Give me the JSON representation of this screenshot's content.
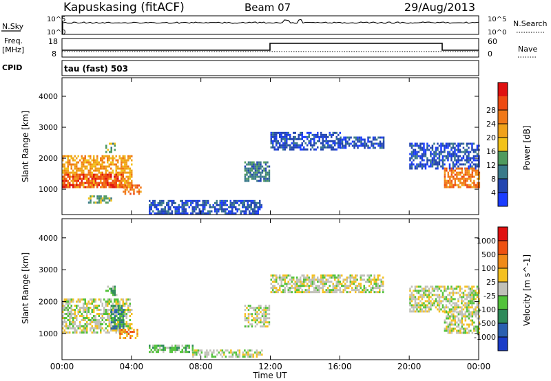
{
  "header": {
    "station": "Kapuskasing (fitACF)",
    "beam": "Beam 07",
    "date": "29/Aug/2013"
  },
  "panels": {
    "nsky_label": "N.Sky",
    "nsearch_label": "N.Search",
    "noise_tick_hi": "10^5",
    "noise_tick_lo": "10^0",
    "freq_label": "Freq.",
    "freq_unit": "[MHz]",
    "freq_ticks": [
      "18",
      "8"
    ],
    "nave_label": "Nave",
    "nave_ticks": [
      "60",
      "0"
    ],
    "cpid_label": "CPID",
    "cpid_value": "tau (fast) 503"
  },
  "chart_data": [
    {
      "type": "heatmap",
      "title": "",
      "xlabel": "Time UT",
      "ylabel": "Slant Range [km]",
      "x_ticks": [
        "00:00",
        "04:00",
        "08:00",
        "12:00",
        "16:00",
        "20:00",
        "00:00"
      ],
      "y_ticks": [
        1000,
        2000,
        3000,
        4000
      ],
      "xlim_hours": [
        0,
        24
      ],
      "ylim_km": [
        180,
        4600
      ],
      "colorbar": {
        "label": "Power [dB]",
        "ticks": [
          "4",
          "8",
          "12",
          "16",
          "20",
          "24",
          "28"
        ],
        "colors": [
          "#1a3cff",
          "#2245b0",
          "#3a7a8a",
          "#4f9a5e",
          "#f2c21a",
          "#f0a11a",
          "#f07818",
          "#ee4a12",
          "#e01010"
        ]
      },
      "regions": [
        {
          "t0": 0.0,
          "t1": 4.0,
          "r0": 1050,
          "r1": 2100,
          "level": 5
        },
        {
          "t0": 0.0,
          "t1": 3.5,
          "r0": 1100,
          "r1": 1500,
          "level": 7
        },
        {
          "t0": 2.5,
          "t1": 3.0,
          "r0": 2200,
          "r1": 2500,
          "level": 3
        },
        {
          "t0": 3.5,
          "t1": 4.5,
          "r0": 850,
          "r1": 1150,
          "level": 6
        },
        {
          "t0": 1.5,
          "t1": 2.8,
          "r0": 550,
          "r1": 800,
          "level": 3
        },
        {
          "t0": 5.0,
          "t1": 11.5,
          "r0": 250,
          "r1": 650,
          "level": 1
        },
        {
          "t0": 10.5,
          "t1": 11.9,
          "r0": 1250,
          "r1": 1900,
          "level": 2
        },
        {
          "t0": 12.0,
          "t1": 16.0,
          "r0": 2300,
          "r1": 2850,
          "level": 1
        },
        {
          "t0": 16.0,
          "t1": 18.5,
          "r0": 2350,
          "r1": 2700,
          "level": 1
        },
        {
          "t0": 20.0,
          "t1": 24.0,
          "r0": 1700,
          "r1": 2500,
          "level": 1
        },
        {
          "t0": 22.0,
          "t1": 24.0,
          "r0": 1050,
          "r1": 1700,
          "level": 6
        }
      ]
    },
    {
      "type": "heatmap",
      "title": "",
      "xlabel": "Time UT",
      "ylabel": "Slant Range [km]",
      "x_ticks": [
        "00:00",
        "04:00",
        "08:00",
        "12:00",
        "16:00",
        "20:00",
        "00:00"
      ],
      "y_ticks": [
        1000,
        2000,
        3000,
        4000
      ],
      "xlim_hours": [
        0,
        24
      ],
      "ylim_km": [
        180,
        4600
      ],
      "colorbar": {
        "label": "Velocity [m s^-1]",
        "ticks": [
          "1000",
          "500",
          "100",
          "25",
          "-25",
          "-100",
          "-500",
          "-1000"
        ],
        "colors": [
          "#1a3cc8",
          "#2a5fb0",
          "#2e8a5a",
          "#52c23a",
          "#c0c0b8",
          "#f4c020",
          "#f08a18",
          "#ee5010",
          "#e01010"
        ]
      },
      "regions": [
        {
          "t0": 0.0,
          "t1": 4.0,
          "r0": 1050,
          "r1": 2100,
          "level": 4
        },
        {
          "t0": 2.5,
          "t1": 3.1,
          "r0": 2200,
          "r1": 2500,
          "level": 3
        },
        {
          "t0": 2.8,
          "t1": 3.5,
          "r0": 1150,
          "r1": 1900,
          "level": 2
        },
        {
          "t0": 3.3,
          "t1": 4.3,
          "r0": 850,
          "r1": 1150,
          "level": 6
        },
        {
          "t0": 5.0,
          "t1": 7.5,
          "r0": 450,
          "r1": 650,
          "level": 3
        },
        {
          "t0": 7.5,
          "t1": 11.5,
          "r0": 250,
          "r1": 500,
          "level": 4
        },
        {
          "t0": 10.5,
          "t1": 11.9,
          "r0": 1250,
          "r1": 1900,
          "level": 4
        },
        {
          "t0": 12.0,
          "t1": 18.5,
          "r0": 2300,
          "r1": 2850,
          "level": 4
        },
        {
          "t0": 20.0,
          "t1": 24.0,
          "r0": 1700,
          "r1": 2500,
          "level": 4
        },
        {
          "t0": 22.0,
          "t1": 24.0,
          "r0": 1050,
          "r1": 1700,
          "level": 4
        }
      ]
    }
  ]
}
